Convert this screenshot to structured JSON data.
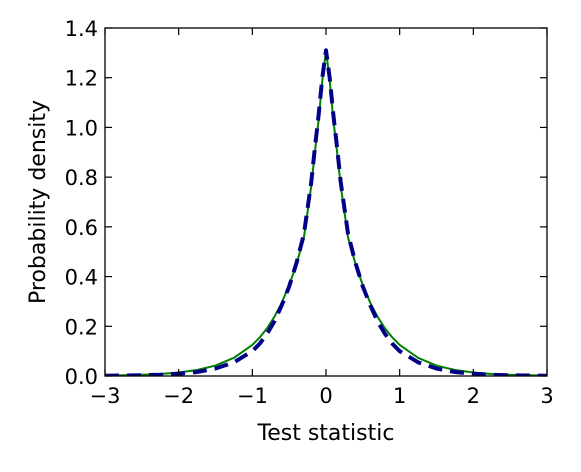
{
  "chart_data": {
    "type": "line",
    "title": "",
    "xlabel": "Test statistic",
    "ylabel": "Probability density",
    "xlim": [
      -3,
      3
    ],
    "ylim": [
      0.0,
      1.4
    ],
    "grid": false,
    "legend": "none",
    "x_ticks": [
      -3,
      -2,
      -1,
      0,
      1,
      2,
      3
    ],
    "x_tick_labels": [
      "−3",
      "−2",
      "−1",
      "0",
      "1",
      "2",
      "3"
    ],
    "y_ticks": [
      0.0,
      0.2,
      0.4,
      0.6,
      0.8,
      1.0,
      1.2,
      1.4
    ],
    "y_tick_labels": [
      "0.0",
      "0.2",
      "0.4",
      "0.6",
      "0.8",
      "1.0",
      "1.2",
      "1.4"
    ],
    "series": [
      {
        "style": "solid",
        "color": "#007f00",
        "x": [
          -3,
          -2.75,
          -2.5,
          -2.25,
          -2,
          -1.75,
          -1.5,
          -1.25,
          -1,
          -0.9,
          -0.8,
          -0.7,
          -0.6,
          -0.5,
          -0.4,
          -0.3,
          -0.2,
          -0.15,
          -0.1,
          -0.05,
          0,
          0.05,
          0.1,
          0.15,
          0.2,
          0.3,
          0.4,
          0.5,
          0.6,
          0.7,
          0.8,
          0.9,
          1,
          1.25,
          1.5,
          1.75,
          2,
          2.25,
          2.5,
          2.75,
          3
        ],
        "y": [
          0.002,
          0.003,
          0.005,
          0.008,
          0.014,
          0.024,
          0.042,
          0.073,
          0.125,
          0.155,
          0.192,
          0.238,
          0.295,
          0.365,
          0.451,
          0.557,
          0.766,
          0.903,
          1.03,
          1.19,
          1.31,
          1.19,
          1.03,
          0.903,
          0.766,
          0.557,
          0.451,
          0.365,
          0.295,
          0.238,
          0.192,
          0.155,
          0.125,
          0.073,
          0.042,
          0.024,
          0.014,
          0.008,
          0.005,
          0.003,
          0.002
        ]
      },
      {
        "style": "dashed",
        "color": "#00008b",
        "x": [
          -3,
          -2.75,
          -2.5,
          -2.25,
          -2,
          -1.75,
          -1.5,
          -1.25,
          -1,
          -0.9,
          -0.8,
          -0.7,
          -0.6,
          -0.5,
          -0.4,
          -0.3,
          -0.2,
          -0.15,
          -0.1,
          -0.05,
          0,
          0.05,
          0.1,
          0.15,
          0.2,
          0.3,
          0.4,
          0.5,
          0.6,
          0.7,
          0.8,
          0.9,
          1,
          1.25,
          1.5,
          1.75,
          2,
          2.25,
          2.5,
          2.75,
          3
        ],
        "y": [
          0.001,
          0.002,
          0.003,
          0.005,
          0.009,
          0.016,
          0.03,
          0.055,
          0.1,
          0.13,
          0.17,
          0.22,
          0.285,
          0.36,
          0.455,
          0.57,
          0.78,
          0.92,
          1.05,
          1.2,
          1.31,
          1.2,
          1.05,
          0.92,
          0.78,
          0.57,
          0.455,
          0.36,
          0.285,
          0.22,
          0.17,
          0.13,
          0.1,
          0.055,
          0.03,
          0.016,
          0.009,
          0.005,
          0.003,
          0.002,
          0.001
        ]
      }
    ]
  }
}
